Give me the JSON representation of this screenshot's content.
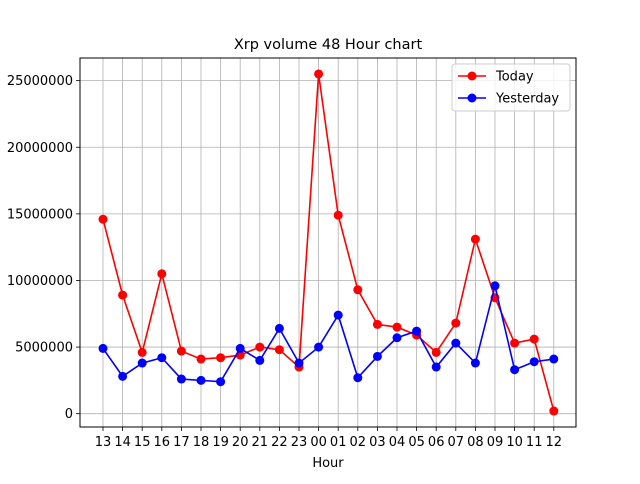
{
  "chart_data": {
    "type": "line",
    "title": "Xrp volume 48 Hour chart",
    "xlabel": "Hour",
    "ylabel": "",
    "categories": [
      "13",
      "14",
      "15",
      "16",
      "17",
      "18",
      "19",
      "20",
      "21",
      "22",
      "23",
      "00",
      "01",
      "02",
      "03",
      "04",
      "05",
      "06",
      "07",
      "08",
      "09",
      "10",
      "11",
      "12"
    ],
    "ylim": [
      -1000000,
      26700000
    ],
    "yticks": [
      0,
      5000000,
      10000000,
      15000000,
      20000000,
      25000000
    ],
    "grid": true,
    "legend_position": "top-right",
    "series": [
      {
        "name": "Today",
        "color": "#ff0000",
        "values": [
          14600000,
          8900000,
          4600000,
          10500000,
          4700000,
          4100000,
          4200000,
          4400000,
          5000000,
          4800000,
          3500000,
          25500000,
          14900000,
          9300000,
          6700000,
          6500000,
          5900000,
          4600000,
          6800000,
          13100000,
          8700000,
          5300000,
          5600000,
          200000
        ]
      },
      {
        "name": "Yesterday",
        "color": "#0000ff",
        "values": [
          4900000,
          2800000,
          3800000,
          4200000,
          2600000,
          2500000,
          2400000,
          4900000,
          4000000,
          6400000,
          3800000,
          5000000,
          7400000,
          2700000,
          4300000,
          5700000,
          6200000,
          3500000,
          5300000,
          3800000,
          9600000,
          3300000,
          3900000,
          4100000
        ]
      }
    ]
  }
}
